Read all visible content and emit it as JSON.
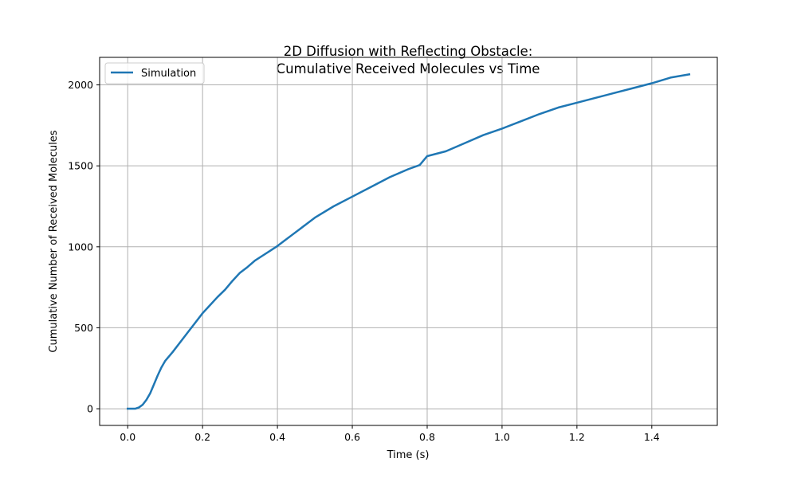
{
  "chart_data": {
    "type": "line",
    "title_lines": [
      "2D Diffusion with Reflecting Obstacle:",
      "Cumulative Received Molecules vs Time"
    ],
    "xlabel": "Time (s)",
    "ylabel": "Cumulative Number of Received Molecules",
    "xlim": [
      -0.075,
      1.575
    ],
    "ylim": [
      -103,
      2170
    ],
    "xticks": [
      0.0,
      0.2,
      0.4,
      0.6,
      0.8,
      1.0,
      1.2,
      1.4
    ],
    "xtick_labels": [
      "0.0",
      "0.2",
      "0.4",
      "0.6",
      "0.8",
      "1.0",
      "1.2",
      "1.4"
    ],
    "yticks": [
      0,
      500,
      1000,
      1500,
      2000
    ],
    "ytick_labels": [
      "0",
      "500",
      "1000",
      "1500",
      "2000"
    ],
    "grid": true,
    "legend_position": "top-left",
    "series": [
      {
        "name": "Simulation",
        "color": "#1f77b4",
        "x": [
          0.0,
          0.02,
          0.03,
          0.04,
          0.05,
          0.06,
          0.07,
          0.08,
          0.09,
          0.1,
          0.12,
          0.14,
          0.16,
          0.18,
          0.2,
          0.22,
          0.24,
          0.26,
          0.28,
          0.3,
          0.32,
          0.34,
          0.36,
          0.38,
          0.4,
          0.42,
          0.44,
          0.46,
          0.48,
          0.5,
          0.55,
          0.6,
          0.65,
          0.7,
          0.75,
          0.78,
          0.8,
          0.85,
          0.9,
          0.95,
          1.0,
          1.05,
          1.1,
          1.15,
          1.2,
          1.25,
          1.3,
          1.35,
          1.4,
          1.45,
          1.5
        ],
        "y": [
          0,
          0,
          8,
          25,
          55,
          95,
          150,
          205,
          255,
          295,
          350,
          410,
          470,
          530,
          590,
          640,
          690,
          735,
          790,
          840,
          875,
          915,
          945,
          975,
          1005,
          1040,
          1075,
          1110,
          1145,
          1180,
          1250,
          1310,
          1370,
          1430,
          1480,
          1505,
          1560,
          1590,
          1640,
          1690,
          1730,
          1775,
          1820,
          1860,
          1890,
          1920,
          1950,
          1980,
          2010,
          2045,
          2065
        ]
      }
    ]
  }
}
